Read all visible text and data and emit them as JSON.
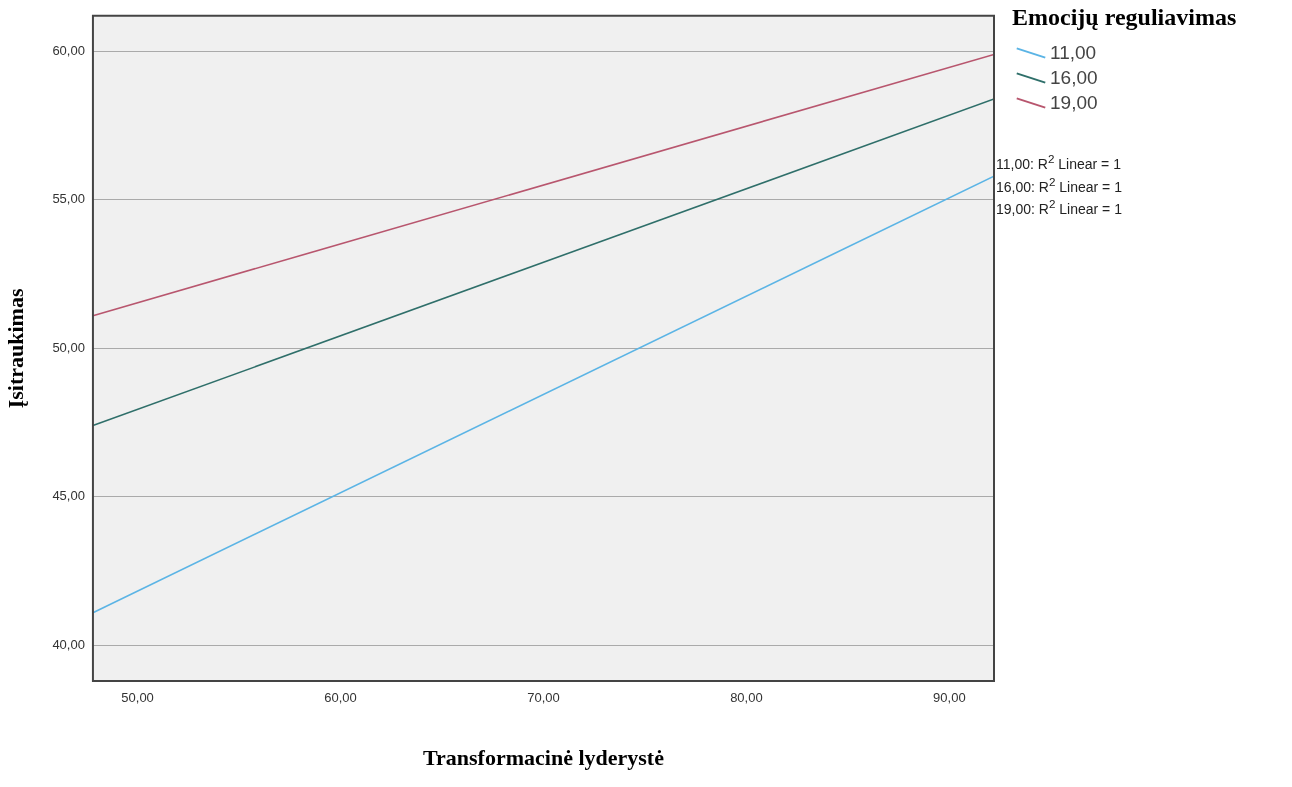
{
  "chart_data": {
    "type": "line",
    "xlabel": "Transformacinė lyderystė",
    "ylabel": "Įsitraukimas",
    "legend_title": "Emocijų reguliavimas",
    "x": [
      47.8,
      92.2
    ],
    "series": [
      {
        "name": "11,00",
        "color": "#5bb4e5",
        "values": [
          41.1,
          55.8
        ]
      },
      {
        "name": "16,00",
        "color": "#2f6f6a",
        "values": [
          47.4,
          58.4
        ]
      },
      {
        "name": "19,00",
        "color": "#b8566e",
        "values": [
          51.1,
          59.9
        ]
      }
    ],
    "xlim": [
      47.8,
      92.2
    ],
    "ylim": [
      38.8,
      61.2
    ],
    "xticks": [
      {
        "value": 50,
        "label": "50,00"
      },
      {
        "value": 60,
        "label": "60,00"
      },
      {
        "value": 70,
        "label": "70,00"
      },
      {
        "value": 80,
        "label": "80,00"
      },
      {
        "value": 90,
        "label": "90,00"
      }
    ],
    "yticks": [
      {
        "value": 40,
        "label": "40,00"
      },
      {
        "value": 45,
        "label": "45,00"
      },
      {
        "value": 50,
        "label": "50,00"
      },
      {
        "value": 55,
        "label": "55,00"
      },
      {
        "value": 60,
        "label": "60,00"
      }
    ],
    "grid": "y",
    "legend": "top right",
    "marker": "none",
    "line_style": "solid",
    "annotations": [
      "11,00: R$^{2}$ Linear = 1",
      "16,00: R$^{2}$ Linear = 1",
      "19,00: R$^{2}$ Linear = 1"
    ]
  }
}
